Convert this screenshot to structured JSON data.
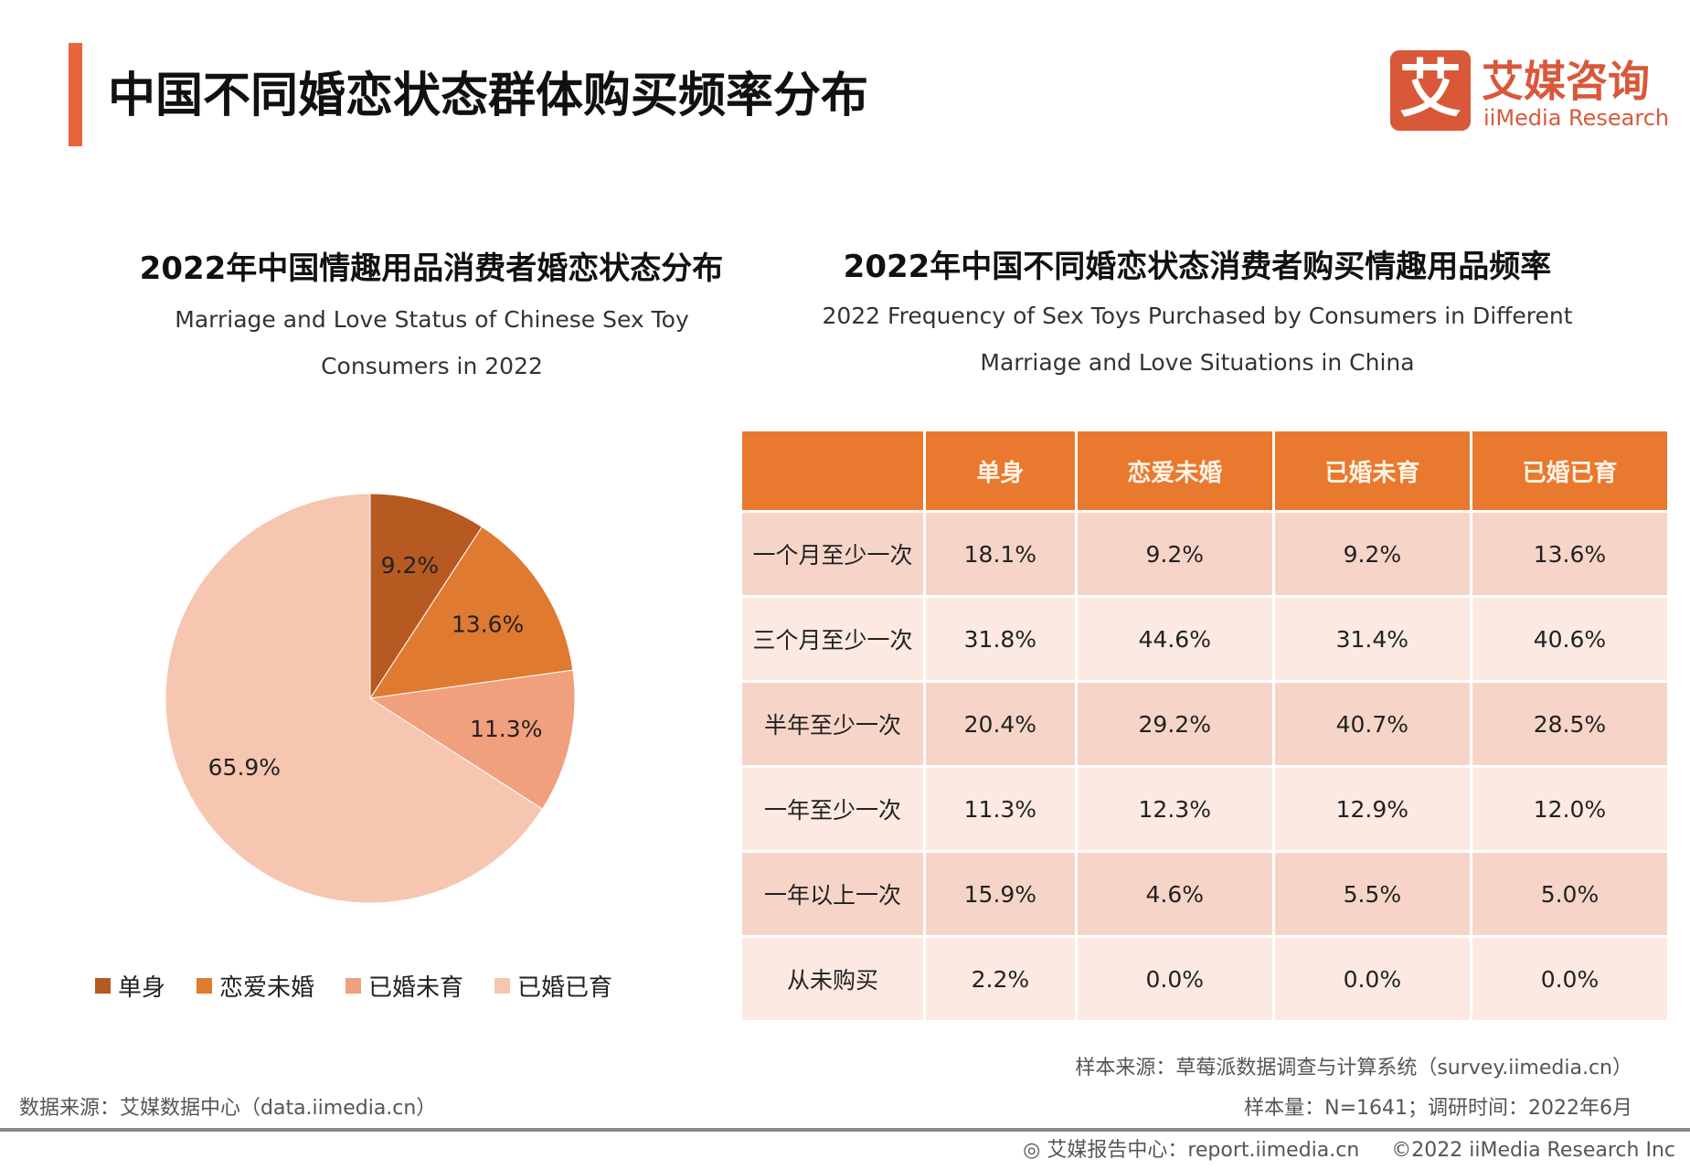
{
  "header": {
    "title": "中国不同婚恋状态群体购买频率分布",
    "accent_color": "#e8643a"
  },
  "logo": {
    "mark": "艾",
    "name_cn": "艾媒咨询",
    "name_en": "iiMedia Research"
  },
  "chart_data": [
    {
      "type": "pie",
      "title": "2022年中国情趣用品消费者婚恋状态分布",
      "subtitle": "Marriage and Love Status of Chinese Sex Toy Consumers in 2022",
      "categories": [
        "单身",
        "恋爱未婚",
        "已婚未育",
        "已婚已育"
      ],
      "values": [
        9.2,
        13.6,
        11.3,
        65.9
      ],
      "labels": [
        "9.2%",
        "13.6%",
        "11.3%",
        "65.9%"
      ],
      "colors": [
        "#b65a22",
        "#e07a30",
        "#f0a07c",
        "#f6c6b0"
      ],
      "legend": "bottom"
    },
    {
      "type": "table",
      "title": "2022年中国不同婚恋状态消费者购买情趣用品频率",
      "subtitle": "2022 Frequency of Sex Toys Purchased by Consumers in Different Marriage and Love Situations in China",
      "columns": [
        "",
        "单身",
        "恋爱未婚",
        "已婚未育",
        "已婚已育"
      ],
      "rows": [
        [
          "一个月至少一次",
          "18.1%",
          "9.2%",
          "9.2%",
          "13.6%"
        ],
        [
          "三个月至少一次",
          "31.8%",
          "44.6%",
          "31.4%",
          "40.6%"
        ],
        [
          "半年至少一次",
          "20.4%",
          "29.2%",
          "40.7%",
          "28.5%"
        ],
        [
          "一年至少一次",
          "11.3%",
          "12.3%",
          "12.9%",
          "12.0%"
        ],
        [
          "一年以上一次",
          "15.9%",
          "4.6%",
          "5.5%",
          "5.0%"
        ],
        [
          "从未购买",
          "2.2%",
          "0.0%",
          "0.0%",
          "0.0%"
        ]
      ],
      "header_color": "#e8792f"
    }
  ],
  "footer": {
    "sample_source": "样本来源：草莓派数据调查与计算系统（survey.iimedia.cn）",
    "sample_info": "样本量：N=1641；调研时间：2022年6月",
    "data_source": "数据来源：艾媒数据中心（data.iimedia.cn）",
    "report": "艾媒报告中心：report.iimedia.cn",
    "copyright": "©2022  iiMedia Research  Inc"
  }
}
